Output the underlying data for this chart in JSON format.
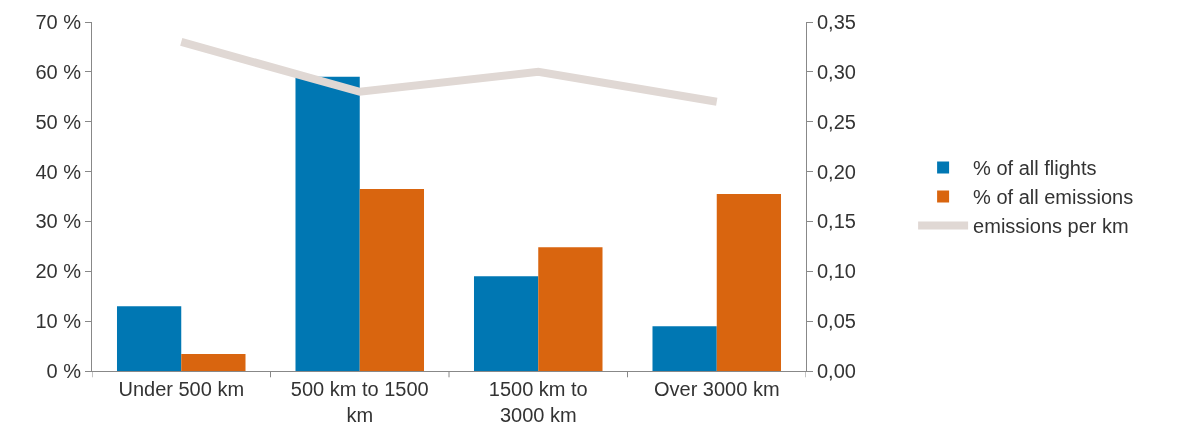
{
  "chart_data": {
    "type": "bar",
    "categories": [
      "Under 500 km",
      "500 km to 1500 km",
      "1500 km to 3000 km",
      "Over 3000 km"
    ],
    "series": [
      {
        "name": "% of all flights",
        "color": "#0077b3",
        "values": [
          13,
          59,
          19,
          9
        ]
      },
      {
        "name": "% of all emissions",
        "color": "#d9650f",
        "values": [
          3.4,
          36.5,
          24.8,
          35.5
        ]
      },
      {
        "name": "emissions per km",
        "type": "line",
        "axis": "y2",
        "color": "#e0d8d4",
        "values": [
          0.33,
          0.28,
          0.3,
          0.27
        ]
      }
    ],
    "ylim": [
      0,
      70
    ],
    "yticks": [
      {
        "value": 0,
        "label": "0 %"
      },
      {
        "value": 10,
        "label": "10 %"
      },
      {
        "value": 20,
        "label": "20 %"
      },
      {
        "value": 30,
        "label": "30 %"
      },
      {
        "value": 40,
        "label": "40 %"
      },
      {
        "value": 50,
        "label": "50 %"
      },
      {
        "value": 60,
        "label": "60 %"
      },
      {
        "value": 70,
        "label": "70 %"
      }
    ],
    "y2lim": [
      0,
      0.35
    ],
    "y2ticks": [
      {
        "value": 0,
        "label": "0,00"
      },
      {
        "value": 0.05,
        "label": "0,05"
      },
      {
        "value": 0.1,
        "label": "0,10"
      },
      {
        "value": 0.15,
        "label": "0,15"
      },
      {
        "value": 0.2,
        "label": "0,20"
      },
      {
        "value": 0.25,
        "label": "0,25"
      },
      {
        "value": 0.3,
        "label": "0,30"
      },
      {
        "value": 0.35,
        "label": "0,35"
      }
    ],
    "grid": false,
    "legend": "right",
    "marker": "none",
    "line_style": "solid"
  }
}
